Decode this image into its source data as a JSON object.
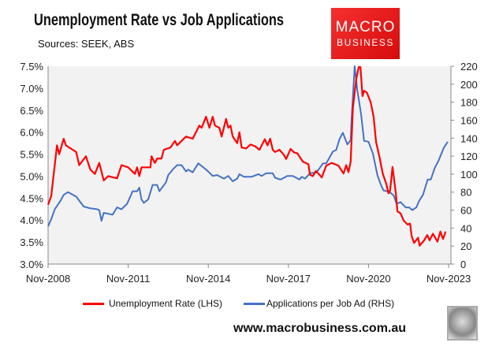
{
  "header": {
    "title": "Unemployment Rate vs Job Applications",
    "subtitle": "Sources: SEEK, ABS"
  },
  "logo": {
    "line1": "MACRO",
    "line2": "BUSINESS"
  },
  "footer": {
    "website": "www.macrobusiness.com.au"
  },
  "colors": {
    "unemployment": "#ff0000",
    "applications": "#4472c4",
    "plot_bg": "#f2f2f2"
  },
  "chart_data": {
    "type": "line",
    "title": "Unemployment Rate vs Job Applications",
    "x_unit": "months since Nov-2008",
    "x_ticks": [
      {
        "m": 0,
        "label": "Nov-2008"
      },
      {
        "m": 36,
        "label": "Nov-2011"
      },
      {
        "m": 72,
        "label": "Nov-2014"
      },
      {
        "m": 108,
        "label": "Nov-2017"
      },
      {
        "m": 144,
        "label": "Nov-2020"
      },
      {
        "m": 180,
        "label": "Nov-2023"
      }
    ],
    "xlim": [
      0,
      180
    ],
    "y_left": {
      "lim": [
        3.0,
        7.5
      ],
      "ticks": [
        "3.0%",
        "3.5%",
        "4.0%",
        "4.5%",
        "5.0%",
        "5.5%",
        "6.0%",
        "6.5%",
        "7.0%",
        "7.5%"
      ]
    },
    "y_right": {
      "lim": [
        0,
        220
      ],
      "ticks": [
        "0",
        "20",
        "40",
        "60",
        "80",
        "100",
        "120",
        "140",
        "160",
        "180",
        "200",
        "220"
      ]
    },
    "legend_position": "bottom",
    "series": [
      {
        "name": "Unemployment Rate (LHS)",
        "axis": "left",
        "points": [
          [
            0,
            4.35
          ],
          [
            1.4,
            4.55
          ],
          [
            4,
            5.7
          ],
          [
            5,
            5.5
          ],
          [
            7,
            5.85
          ],
          [
            8,
            5.7
          ],
          [
            12.6,
            5.55
          ],
          [
            14,
            5.25
          ],
          [
            17,
            5.45
          ],
          [
            19,
            5.15
          ],
          [
            21,
            5.05
          ],
          [
            23,
            5.3
          ],
          [
            25,
            4.9
          ],
          [
            27,
            5.0
          ],
          [
            31,
            4.95
          ],
          [
            33,
            5.25
          ],
          [
            36,
            5.2
          ],
          [
            39,
            5.05
          ],
          [
            40,
            5.2
          ],
          [
            41,
            5.0
          ],
          [
            42,
            5.2
          ],
          [
            46,
            5.2
          ],
          [
            46.5,
            5.45
          ],
          [
            48,
            5.3
          ],
          [
            49,
            5.4
          ],
          [
            51,
            5.4
          ],
          [
            52,
            5.6
          ],
          [
            55,
            5.65
          ],
          [
            57,
            5.8
          ],
          [
            58,
            5.7
          ],
          [
            60,
            5.8
          ],
          [
            62,
            5.9
          ],
          [
            65,
            5.85
          ],
          [
            68,
            6.15
          ],
          [
            69,
            6.1
          ],
          [
            71,
            6.35
          ],
          [
            72.5,
            6.1
          ],
          [
            74,
            6.35
          ],
          [
            75,
            6.15
          ],
          [
            77,
            6.1
          ],
          [
            78,
            5.9
          ],
          [
            80,
            6.3
          ],
          [
            81,
            6.1
          ],
          [
            82,
            6.15
          ],
          [
            83,
            5.9
          ],
          [
            85,
            5.75
          ],
          [
            86,
            6.0
          ],
          [
            87,
            5.65
          ],
          [
            89,
            5.63
          ],
          [
            91,
            5.72
          ],
          [
            93,
            5.68
          ],
          [
            95,
            5.6
          ],
          [
            97.4,
            5.84
          ],
          [
            98.6,
            5.7
          ],
          [
            99.8,
            5.85
          ],
          [
            101,
            5.6
          ],
          [
            102,
            5.55
          ],
          [
            104,
            5.6
          ],
          [
            106,
            5.48
          ],
          [
            107,
            5.39
          ],
          [
            109,
            5.62
          ],
          [
            110.5,
            5.54
          ],
          [
            112,
            5.52
          ],
          [
            114.5,
            5.33
          ],
          [
            117,
            5.27
          ],
          [
            117.7,
            5.03
          ],
          [
            119,
            5.0
          ],
          [
            120.4,
            5.12
          ],
          [
            122,
            5.03
          ],
          [
            123,
            4.97
          ],
          [
            125,
            5.24
          ],
          [
            127.4,
            5.3
          ],
          [
            129,
            5.27
          ],
          [
            130.5,
            5.24
          ],
          [
            132.8,
            5.06
          ],
          [
            134,
            5.25
          ],
          [
            135,
            5.09
          ],
          [
            136,
            5.33
          ],
          [
            137,
            6.55
          ],
          [
            138.5,
            7.21
          ],
          [
            139.6,
            7.48
          ],
          [
            140.4,
            7.48
          ],
          [
            141.3,
            6.82
          ],
          [
            142,
            6.94
          ],
          [
            143.3,
            6.9
          ],
          [
            145,
            6.68
          ],
          [
            146.3,
            6.35
          ],
          [
            147.4,
            5.78
          ],
          [
            149,
            5.42
          ],
          [
            150.4,
            5.06
          ],
          [
            152,
            4.82
          ],
          [
            153,
            4.61
          ],
          [
            153.7,
            4.67
          ],
          [
            154.8,
            5.21
          ],
          [
            156.3,
            4.61
          ],
          [
            157,
            4.2
          ],
          [
            158.5,
            4.15
          ],
          [
            159.8,
            3.99
          ],
          [
            161.5,
            3.9
          ],
          [
            162.7,
            3.92
          ],
          [
            163.4,
            3.63
          ],
          [
            164.5,
            3.48
          ],
          [
            166.3,
            3.6
          ],
          [
            167,
            3.42
          ],
          [
            169,
            3.54
          ],
          [
            170.4,
            3.66
          ],
          [
            171.5,
            3.54
          ],
          [
            173,
            3.69
          ],
          [
            175,
            3.51
          ],
          [
            176.3,
            3.74
          ],
          [
            177.5,
            3.57
          ],
          [
            178.7,
            3.74
          ]
        ]
      },
      {
        "name": "Applications per Job Ad (RHS)",
        "axis": "right",
        "points": [
          [
            0,
            42
          ],
          [
            1.4,
            50
          ],
          [
            3,
            61
          ],
          [
            5.5,
            70
          ],
          [
            7,
            77
          ],
          [
            9,
            80
          ],
          [
            12.6,
            75
          ],
          [
            16,
            64
          ],
          [
            19,
            62
          ],
          [
            22,
            61
          ],
          [
            23,
            60
          ],
          [
            24,
            48
          ],
          [
            25,
            57
          ],
          [
            29,
            55
          ],
          [
            31,
            63
          ],
          [
            33,
            61
          ],
          [
            35.5,
            67
          ],
          [
            38,
            81
          ],
          [
            40,
            81
          ],
          [
            41,
            85
          ],
          [
            42,
            72
          ],
          [
            43,
            68
          ],
          [
            45,
            72
          ],
          [
            47,
            88
          ],
          [
            49,
            88
          ],
          [
            50,
            81
          ],
          [
            53,
            91
          ],
          [
            54,
            99
          ],
          [
            56,
            105
          ],
          [
            58,
            110
          ],
          [
            60,
            110
          ],
          [
            62,
            103
          ],
          [
            63,
            105
          ],
          [
            65,
            102
          ],
          [
            67.5,
            112
          ],
          [
            70,
            107
          ],
          [
            71.5,
            104
          ],
          [
            74,
            98
          ],
          [
            76,
            99
          ],
          [
            79,
            95
          ],
          [
            81,
            98
          ],
          [
            83,
            92
          ],
          [
            85,
            95
          ],
          [
            86,
            100
          ],
          [
            88,
            97
          ],
          [
            91.5,
            97
          ],
          [
            94.5,
            100
          ],
          [
            96,
            98
          ],
          [
            98,
            101
          ],
          [
            101,
            101
          ],
          [
            102,
            96
          ],
          [
            104.5,
            94
          ],
          [
            107.5,
            98
          ],
          [
            110,
            98
          ],
          [
            113,
            94
          ],
          [
            114,
            97
          ],
          [
            115.5,
            95
          ],
          [
            117.7,
            101
          ],
          [
            120.7,
            102
          ],
          [
            123.6,
            112
          ],
          [
            125,
            112
          ],
          [
            128,
            125
          ],
          [
            129.5,
            127
          ],
          [
            131,
            139
          ],
          [
            132.5,
            146
          ],
          [
            134.5,
            133
          ],
          [
            136,
            138
          ],
          [
            136.4,
            162
          ],
          [
            137.8,
            220
          ],
          [
            139,
            193
          ],
          [
            140.7,
            166
          ],
          [
            142,
            137
          ],
          [
            144,
            136
          ],
          [
            146,
            123
          ],
          [
            148,
            99
          ],
          [
            149.6,
            88
          ],
          [
            150.7,
            82
          ],
          [
            153.6,
            80
          ],
          [
            155.4,
            76
          ],
          [
            156.6,
            67
          ],
          [
            158.4,
            69
          ],
          [
            160.7,
            63
          ],
          [
            162.3,
            63
          ],
          [
            163.7,
            60
          ],
          [
            165.5,
            63
          ],
          [
            166.7,
            70
          ],
          [
            168.5,
            77
          ],
          [
            170.6,
            94
          ],
          [
            172,
            94
          ],
          [
            173.8,
            107
          ],
          [
            175.5,
            115
          ],
          [
            177.8,
            129
          ],
          [
            179.6,
            136
          ]
        ]
      }
    ]
  }
}
